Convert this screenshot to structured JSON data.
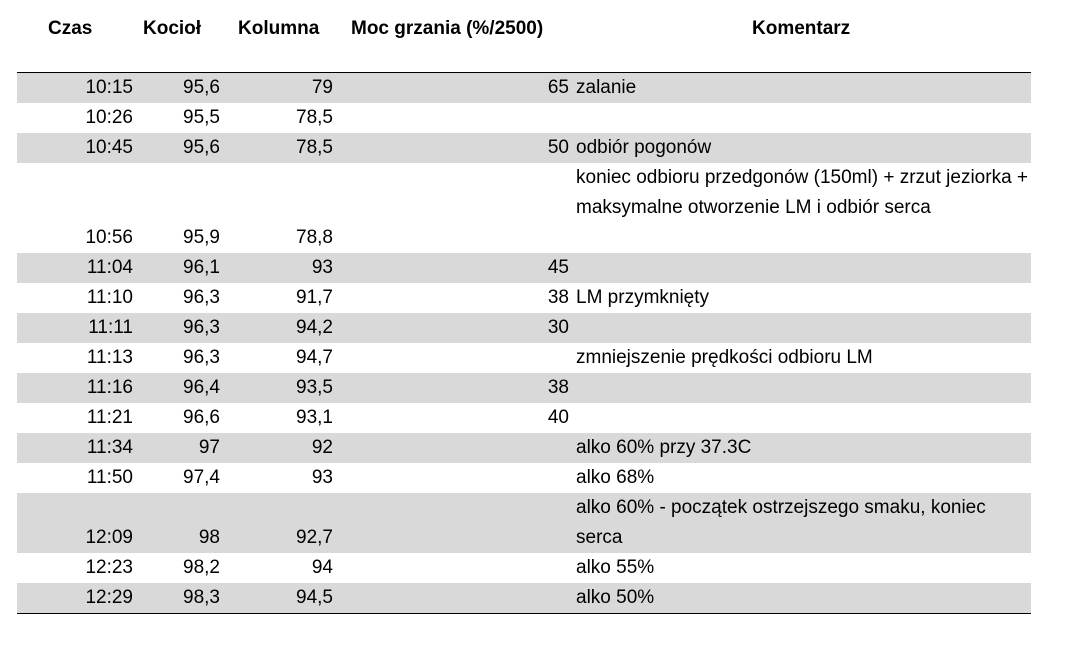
{
  "headers": {
    "czas": "Czas",
    "kociol": "Kocioł",
    "kolumna": "Kolumna",
    "moc": "Moc grzania (%/2500)",
    "komentarz": "Komentarz"
  },
  "rows": [
    {
      "czas": "10:15",
      "kociol": "95,6",
      "kolumna": "79",
      "moc": "65",
      "komentarz": "zalanie"
    },
    {
      "czas": "10:26",
      "kociol": "95,5",
      "kolumna": "78,5",
      "moc": "",
      "komentarz": ""
    },
    {
      "czas": "10:45",
      "kociol": "95,6",
      "kolumna": "78,5",
      "moc": "50",
      "komentarz": "odbiór pogonów"
    },
    {
      "czas": "10:56",
      "kociol": "95,9",
      "kolumna": "78,8",
      "moc": "",
      "komentarz": "koniec odbioru przedgonów (150ml) + zrzut jeziorka  + maksymalne otworzenie LM i odbiór serca"
    },
    {
      "czas": "11:04",
      "kociol": "96,1",
      "kolumna": "93",
      "moc": "45",
      "komentarz": ""
    },
    {
      "czas": "11:10",
      "kociol": "96,3",
      "kolumna": "91,7",
      "moc": "38",
      "komentarz": "LM przymknięty"
    },
    {
      "czas": "11:11",
      "kociol": "96,3",
      "kolumna": "94,2",
      "moc": "30",
      "komentarz": ""
    },
    {
      "czas": "11:13",
      "kociol": "96,3",
      "kolumna": "94,7",
      "moc": "",
      "komentarz": "zmniejszenie prędkości odbioru LM"
    },
    {
      "czas": "11:16",
      "kociol": "96,4",
      "kolumna": "93,5",
      "moc": "38",
      "komentarz": ""
    },
    {
      "czas": "11:21",
      "kociol": "96,6",
      "kolumna": "93,1",
      "moc": "40",
      "komentarz": ""
    },
    {
      "czas": "11:34",
      "kociol": "97",
      "kolumna": "92",
      "moc": "",
      "komentarz": "alko 60% przy 37.3C"
    },
    {
      "czas": "11:50",
      "kociol": "97,4",
      "kolumna": "93",
      "moc": "",
      "komentarz": "alko 68%"
    },
    {
      "czas": "12:09",
      "kociol": "98",
      "kolumna": "92,7",
      "moc": "",
      "komentarz": "alko 60% - początek ostrzejszego smaku, koniec serca"
    },
    {
      "czas": "12:23",
      "kociol": "98,2",
      "kolumna": "94",
      "moc": "",
      "komentarz": "alko 55%"
    },
    {
      "czas": "12:29",
      "kociol": "98,3",
      "kolumna": "94,5",
      "moc": "",
      "komentarz": "alko 50%"
    }
  ]
}
